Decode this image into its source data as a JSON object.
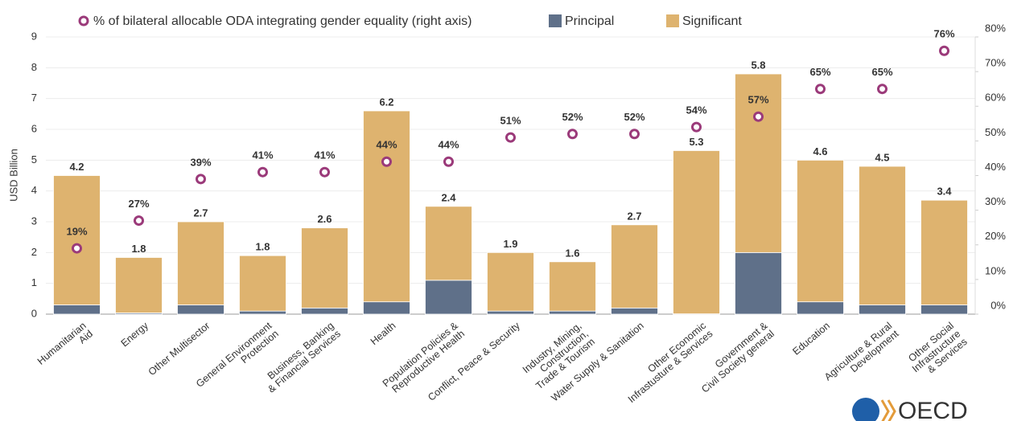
{
  "chart_data": {
    "type": "bar",
    "y_label": "USD Billion",
    "categories": [
      "Humanitarian\nAid",
      "Energy",
      "Other Multisector",
      "General Environment\nProtection",
      "Business, Banking\n& Financial Services",
      "Health",
      "Population Policies &\nReproductive Health",
      "Conflict, Peace & Security",
      "Industry, Mining,\nConstruction,\nTrade & Tourism",
      "Water Supply & Sanitation",
      "Other Economic\nInfrastusture & Services",
      "Government &\nCivil Society general",
      "Education",
      "Agriculture & Rural\nDevelopment",
      "Other Social\nInfrastructure\n& Services"
    ],
    "series": [
      {
        "name": "Principal",
        "color": "#5f7089",
        "label_color": "#5f7590",
        "values": [
          0.3,
          0.04,
          0.3,
          0.1,
          0.2,
          0.4,
          1.1,
          0.1,
          0.1,
          0.2,
          0.01,
          2,
          0.4,
          0.3,
          0.3
        ]
      },
      {
        "name": "Significant",
        "color": "#deb36f",
        "label_color": "#e2a94f",
        "values": [
          4.2,
          1.8,
          2.7,
          1.8,
          2.6,
          6.2,
          2.4,
          1.9,
          1.6,
          2.7,
          5.3,
          5.8,
          4.6,
          4.5,
          3.4
        ]
      },
      {
        "name": "% of bilateral allocable ODA integrating gender equality (right axis)",
        "color": "#9b3a7a",
        "label_color": "#8b2a6a",
        "axis": "y2",
        "values": [
          19,
          27,
          39,
          41,
          41,
          44,
          44,
          51,
          52,
          52,
          54,
          57,
          65,
          65,
          76
        ],
        "value_labels": [
          "19%",
          "27%",
          "39%",
          "41%",
          "41%",
          "44%",
          "44%",
          "51%",
          "52%",
          "52%",
          "54%",
          "57%",
          "65%",
          "65%",
          "76%"
        ]
      }
    ],
    "stacked": true,
    "ylim": [
      0,
      9
    ],
    "yticks": [
      0,
      1,
      2,
      3,
      4,
      5,
      6,
      7,
      8,
      9
    ],
    "y2lim": [
      0,
      80
    ],
    "y2ticks": [
      {
        "value": 0,
        "label": "0%"
      },
      {
        "value": 10,
        "label": "10%"
      },
      {
        "value": 20,
        "label": "20%"
      },
      {
        "value": 30,
        "label": "30%"
      },
      {
        "value": 40,
        "label": "40%"
      },
      {
        "value": 50,
        "label": "50%"
      },
      {
        "value": 60,
        "label": "60%"
      },
      {
        "value": 70,
        "label": "70%"
      },
      {
        "value": 80,
        "label": "80%"
      }
    ],
    "grid": true,
    "legend": "top",
    "logo": "OECD"
  }
}
